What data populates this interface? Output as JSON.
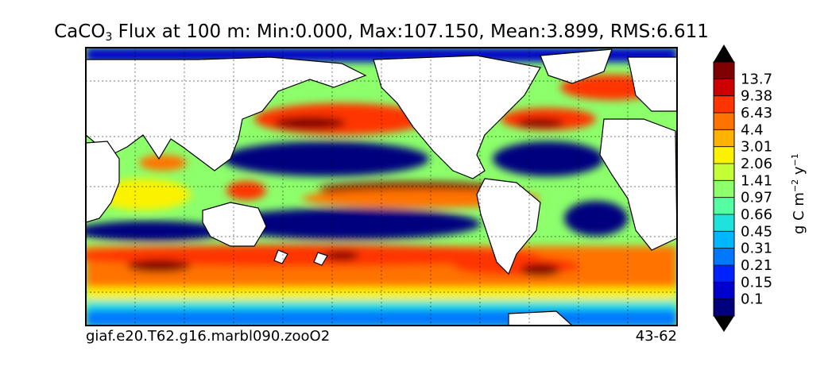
{
  "title": {
    "prefix": "CaCO",
    "subscript": "3",
    "rest": " Flux at 100 m: Min:0.000, Max:107.150, Mean:3.899, RMS:6.611"
  },
  "footer": {
    "case_name": "giaf.e20.T62.g16.marbl090.zooO2",
    "years": "43-62"
  },
  "colorbar": {
    "unit_parts": [
      "g C m",
      "−2",
      " y",
      "−1"
    ],
    "ticks": [
      "0.1",
      "0.15",
      "0.21",
      "0.31",
      "0.45",
      "0.66",
      "0.97",
      "1.41",
      "2.06",
      "3.01",
      "4.4",
      "6.43",
      "9.38",
      "13.7"
    ],
    "colors": [
      "#00007f",
      "#0000cc",
      "#0022ff",
      "#0077ff",
      "#00b7ff",
      "#1fe3da",
      "#54ffa2",
      "#8cff6b",
      "#c3ff34",
      "#fbf200",
      "#ffb300",
      "#ff7300",
      "#ff3400",
      "#cc0000",
      "#7f0000"
    ],
    "extend": "both"
  },
  "map_style": {
    "ocean_default": "#1fe3da",
    "land": "#ffffff",
    "coast": "#000000",
    "grid": "dashed"
  }
}
